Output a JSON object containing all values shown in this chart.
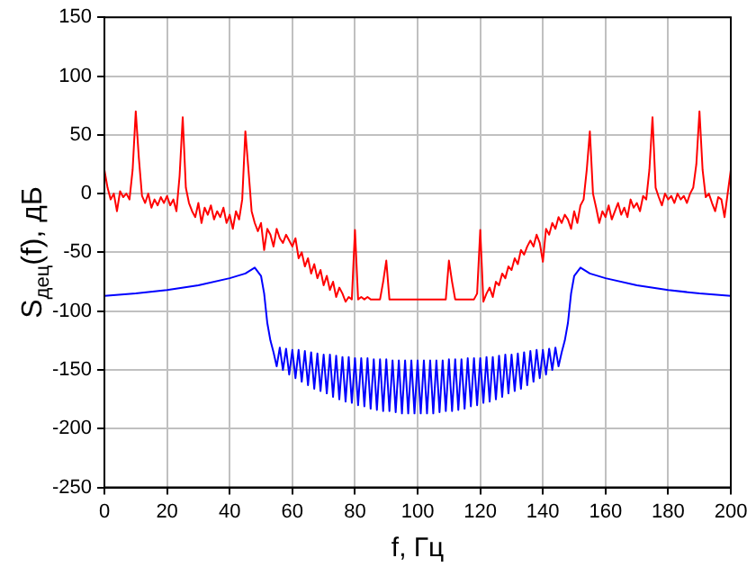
{
  "chart_data": {
    "type": "line",
    "xlabel": "f, Гц",
    "ylabel": "S$_{дец}$(f), дБ",
    "xlim": [
      0,
      200
    ],
    "xticks": [
      0,
      20,
      40,
      60,
      80,
      100,
      120,
      140,
      160,
      180,
      200
    ],
    "ylim": [
      -250,
      150
    ],
    "yticks": [
      150,
      100,
      50,
      0,
      -50,
      -100,
      -150,
      -200,
      -250
    ],
    "grid": true,
    "legend": false,
    "marker": "none",
    "line_style": "solid",
    "series": [
      {
        "color": "#ff0000",
        "x": [
          0,
          1,
          2,
          3,
          4,
          5,
          6,
          7,
          8,
          9,
          10,
          11,
          12,
          13,
          14,
          15,
          16,
          17,
          18,
          19,
          20,
          21,
          22,
          23,
          24,
          25,
          26,
          27,
          28,
          29,
          30,
          31,
          32,
          33,
          34,
          35,
          36,
          37,
          38,
          39,
          40,
          41,
          42,
          43,
          44,
          45,
          46,
          47,
          48,
          49,
          50,
          51,
          52,
          53,
          54,
          55,
          56,
          57,
          58,
          59,
          60,
          61,
          62,
          63,
          64,
          65,
          66,
          67,
          68,
          69,
          70,
          71,
          72,
          73,
          74,
          75,
          76,
          77,
          78,
          79,
          80,
          81,
          82,
          83,
          84,
          85,
          88,
          89,
          90,
          91,
          109,
          110,
          111,
          112,
          118,
          119,
          120,
          121,
          122,
          123,
          124,
          125,
          126,
          127,
          128,
          129,
          130,
          131,
          132,
          133,
          134,
          135,
          136,
          137,
          138,
          139,
          140,
          141,
          142,
          143,
          144,
          145,
          146,
          147,
          148,
          149,
          150,
          151,
          152,
          153,
          154,
          155,
          156,
          157,
          158,
          159,
          160,
          161,
          162,
          163,
          164,
          165,
          166,
          167,
          168,
          169,
          170,
          171,
          172,
          173,
          174,
          175,
          176,
          177,
          178,
          179,
          180,
          181,
          182,
          183,
          184,
          185,
          186,
          187,
          188,
          189,
          190,
          191,
          192,
          193,
          194,
          195,
          196,
          197,
          198,
          199,
          200
        ],
        "values": [
          20,
          5,
          -5,
          0,
          -15,
          2,
          -3,
          0,
          -5,
          20,
          70,
          30,
          -2,
          -8,
          0,
          -12,
          -5,
          -10,
          -3,
          -8,
          -2,
          -10,
          -5,
          -15,
          15,
          65,
          5,
          -8,
          -15,
          -20,
          -8,
          -25,
          -12,
          -18,
          -10,
          -22,
          -15,
          -20,
          -12,
          -25,
          -18,
          -30,
          -15,
          -22,
          -5,
          53,
          20,
          -15,
          -25,
          -32,
          -25,
          -48,
          -30,
          -35,
          -45,
          -30,
          -38,
          -42,
          -35,
          -40,
          -45,
          -38,
          -55,
          -50,
          -62,
          -55,
          -68,
          -60,
          -72,
          -65,
          -78,
          -70,
          -82,
          -75,
          -88,
          -80,
          -85,
          -92,
          -88,
          -90,
          -31,
          -90,
          -88,
          -90,
          -88,
          -90,
          -90,
          -75,
          -57,
          -90,
          -90,
          -57,
          -75,
          -90,
          -90,
          -85,
          -31,
          -92,
          -85,
          -80,
          -88,
          -75,
          -78,
          -68,
          -72,
          -62,
          -65,
          -55,
          -60,
          -48,
          -52,
          -45,
          -40,
          -45,
          -35,
          -42,
          -58,
          -30,
          -35,
          -25,
          -30,
          -20,
          -25,
          -18,
          -22,
          -30,
          -15,
          -25,
          -10,
          -5,
          20,
          53,
          0,
          -12,
          -25,
          -15,
          -20,
          -10,
          -22,
          -15,
          -8,
          -18,
          -12,
          -20,
          -5,
          -12,
          -8,
          -15,
          -2,
          -5,
          20,
          65,
          5,
          -3,
          -10,
          0,
          -5,
          -2,
          -8,
          0,
          -5,
          -2,
          -8,
          0,
          5,
          25,
          70,
          20,
          -3,
          0,
          -8,
          -15,
          -3,
          -5,
          -20,
          0,
          20
        ]
      },
      {
        "color": "#0000ff",
        "x": [
          0,
          10,
          20,
          30,
          40,
          45,
          48,
          50,
          51,
          52,
          53,
          54,
          55,
          56,
          57,
          58,
          59,
          60,
          61,
          62,
          63,
          64,
          65,
          66,
          67,
          68,
          69,
          70,
          71,
          72,
          73,
          74,
          75,
          76,
          77,
          78,
          79,
          80,
          81,
          82,
          83,
          84,
          85,
          86,
          87,
          88,
          89,
          90,
          91,
          92,
          93,
          94,
          95,
          96,
          97,
          98,
          99,
          100,
          101,
          102,
          103,
          104,
          105,
          106,
          107,
          108,
          109,
          110,
          111,
          112,
          113,
          114,
          115,
          116,
          117,
          118,
          119,
          120,
          121,
          122,
          123,
          124,
          125,
          126,
          127,
          128,
          129,
          130,
          131,
          132,
          133,
          134,
          135,
          136,
          137,
          138,
          139,
          140,
          141,
          142,
          143,
          144,
          145,
          146,
          147,
          148,
          149,
          150,
          152,
          155,
          160,
          170,
          180,
          190,
          200
        ],
        "values": [
          -87,
          -85,
          -82,
          -78,
          -72,
          -68,
          -63,
          -70,
          -85,
          -110,
          -125,
          -135,
          -147,
          -131,
          -150,
          -132,
          -154,
          -133,
          -157,
          -133,
          -160,
          -134,
          -163,
          -135,
          -166,
          -136,
          -168,
          -137,
          -170,
          -137,
          -173,
          -138,
          -175,
          -139,
          -177,
          -139,
          -178,
          -140,
          -180,
          -140,
          -181,
          -140,
          -183,
          -141,
          -184,
          -141,
          -185,
          -141,
          -185,
          -142,
          -186,
          -142,
          -187,
          -142,
          -187,
          -142,
          -187,
          -142,
          -187,
          -142,
          -187,
          -142,
          -187,
          -142,
          -186,
          -142,
          -185,
          -141,
          -185,
          -141,
          -184,
          -141,
          -183,
          -140,
          -181,
          -140,
          -180,
          -140,
          -178,
          -139,
          -177,
          -139,
          -175,
          -138,
          -173,
          -137,
          -170,
          -137,
          -168,
          -136,
          -166,
          -135,
          -163,
          -134,
          -160,
          -133,
          -157,
          -133,
          -154,
          -132,
          -150,
          -131,
          -147,
          -135,
          -125,
          -110,
          -85,
          -70,
          -63,
          -68,
          -72,
          -78,
          -82,
          -85,
          -87
        ]
      }
    ]
  }
}
